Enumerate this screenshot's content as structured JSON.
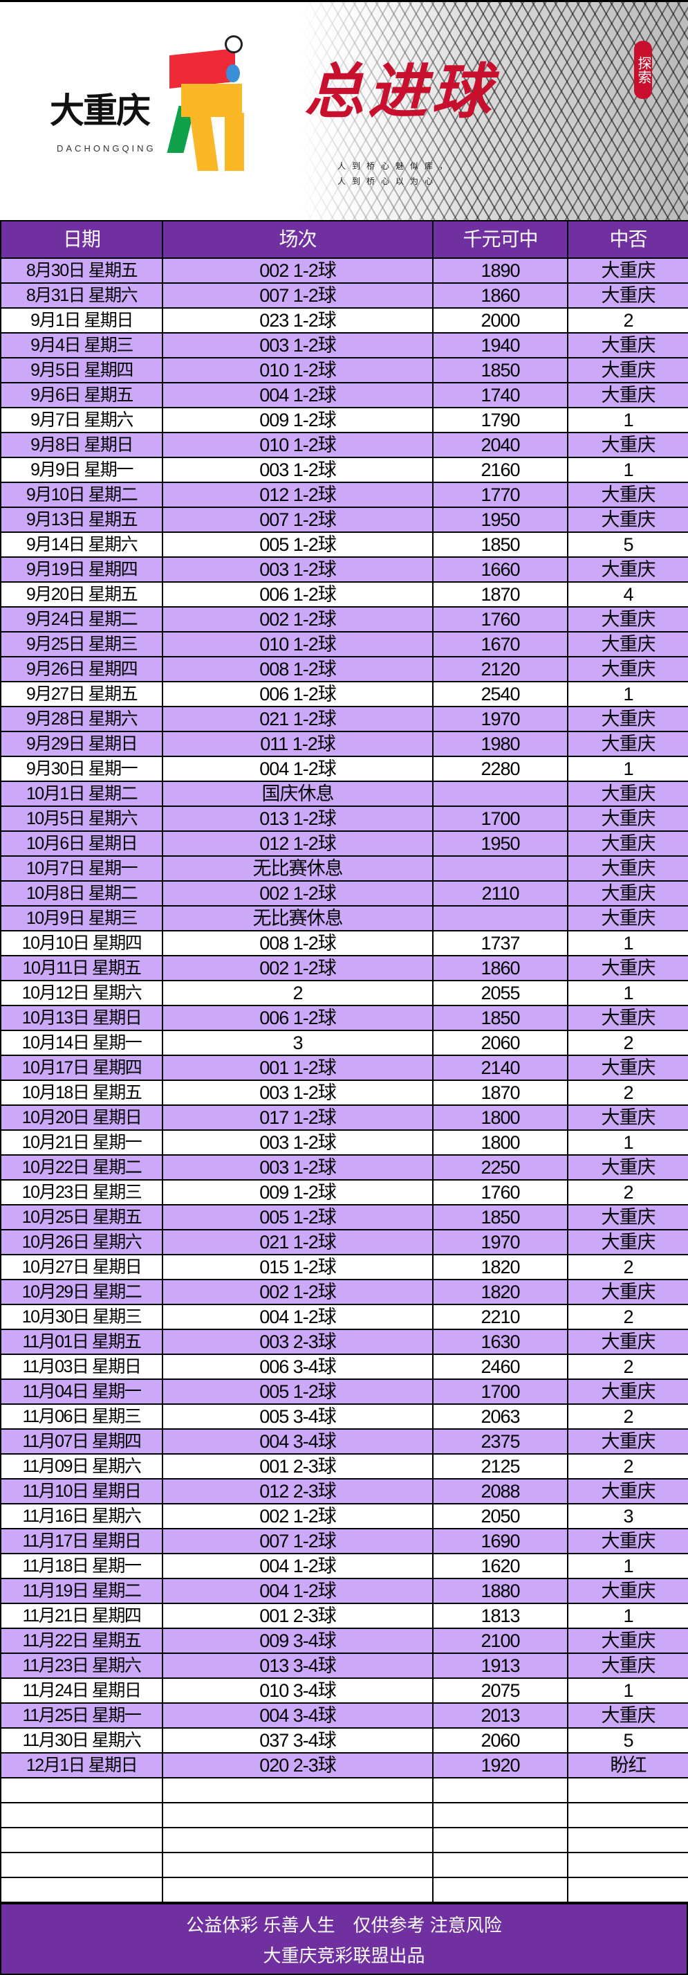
{
  "banner": {
    "brand": "大重庆",
    "brand_sub": "DACHONGQING",
    "title": "总进球",
    "poem": [
      "人到桥心魅似库，",
      "人到桥心以为心"
    ],
    "stamp": "探索"
  },
  "colors": {
    "header_bg": "#7030a0",
    "hit_row_bg": "#cca8f8",
    "title_red": "#c8102e"
  },
  "table": {
    "headers": [
      "日期",
      "场次",
      "千元可中",
      "中否"
    ],
    "rows": [
      {
        "date": "8月30日 星期五",
        "match": "002 1-2球",
        "payout": "1890",
        "result": "大重庆",
        "hit": true
      },
      {
        "date": "8月31日 星期六",
        "match": "007 1-2球",
        "payout": "1860",
        "result": "大重庆",
        "hit": true
      },
      {
        "date": "9月1日 星期日",
        "match": "023 1-2球",
        "payout": "2000",
        "result": "2",
        "hit": false
      },
      {
        "date": "9月4日 星期三",
        "match": "003 1-2球",
        "payout": "1940",
        "result": "大重庆",
        "hit": true
      },
      {
        "date": "9月5日 星期四",
        "match": "010 1-2球",
        "payout": "1850",
        "result": "大重庆",
        "hit": true
      },
      {
        "date": "9月6日 星期五",
        "match": "004 1-2球",
        "payout": "1740",
        "result": "大重庆",
        "hit": true
      },
      {
        "date": "9月7日 星期六",
        "match": "009 1-2球",
        "payout": "1790",
        "result": "1",
        "hit": false
      },
      {
        "date": "9月8日 星期日",
        "match": "010 1-2球",
        "payout": "2040",
        "result": "大重庆",
        "hit": true
      },
      {
        "date": "9月9日 星期一",
        "match": "003 1-2球",
        "payout": "2160",
        "result": "1",
        "hit": false
      },
      {
        "date": "9月10日 星期二",
        "match": "012 1-2球",
        "payout": "1770",
        "result": "大重庆",
        "hit": true
      },
      {
        "date": "9月13日 星期五",
        "match": "007 1-2球",
        "payout": "1950",
        "result": "大重庆",
        "hit": true
      },
      {
        "date": "9月14日 星期六",
        "match": "005 1-2球",
        "payout": "1850",
        "result": "5",
        "hit": false
      },
      {
        "date": "9月19日 星期四",
        "match": "003 1-2球",
        "payout": "1660",
        "result": "大重庆",
        "hit": true
      },
      {
        "date": "9月20日 星期五",
        "match": "006 1-2球",
        "payout": "1870",
        "result": "4",
        "hit": false
      },
      {
        "date": "9月24日 星期二",
        "match": "002 1-2球",
        "payout": "1760",
        "result": "大重庆",
        "hit": true
      },
      {
        "date": "9月25日 星期三",
        "match": "010 1-2球",
        "payout": "1670",
        "result": "大重庆",
        "hit": true
      },
      {
        "date": "9月26日 星期四",
        "match": "008 1-2球",
        "payout": "2120",
        "result": "大重庆",
        "hit": true
      },
      {
        "date": "9月27日 星期五",
        "match": "006 1-2球",
        "payout": "2540",
        "result": "1",
        "hit": false
      },
      {
        "date": "9月28日 星期六",
        "match": "021 1-2球",
        "payout": "1970",
        "result": "大重庆",
        "hit": true
      },
      {
        "date": "9月29日 星期日",
        "match": "011 1-2球",
        "payout": "1980",
        "result": "大重庆",
        "hit": true
      },
      {
        "date": "9月30日 星期一",
        "match": "004 1-2球",
        "payout": "2280",
        "result": "1",
        "hit": false
      },
      {
        "date": "10月1日 星期二",
        "match": "国庆休息",
        "payout": "",
        "result": "大重庆",
        "hit": true
      },
      {
        "date": "10月5日 星期六",
        "match": "013 1-2球",
        "payout": "1700",
        "result": "大重庆",
        "hit": true
      },
      {
        "date": "10月6日 星期日",
        "match": "012 1-2球",
        "payout": "1950",
        "result": "大重庆",
        "hit": true
      },
      {
        "date": "10月7日 星期一",
        "match": "无比赛休息",
        "payout": "",
        "result": "大重庆",
        "hit": true
      },
      {
        "date": "10月8日 星期二",
        "match": "002 1-2球",
        "payout": "2110",
        "result": "大重庆",
        "hit": true
      },
      {
        "date": "10月9日 星期三",
        "match": "无比赛休息",
        "payout": "",
        "result": "大重庆",
        "hit": true
      },
      {
        "date": "10月10日 星期四",
        "match": "008 1-2球",
        "payout": "1737",
        "result": "1",
        "hit": false
      },
      {
        "date": "10月11日 星期五",
        "match": "002 1-2球",
        "payout": "1860",
        "result": "大重庆",
        "hit": true
      },
      {
        "date": "10月12日 星期六",
        "match": "2",
        "payout": "2055",
        "result": "1",
        "hit": false
      },
      {
        "date": "10月13日 星期日",
        "match": "006 1-2球",
        "payout": "1850",
        "result": "大重庆",
        "hit": true
      },
      {
        "date": "10月14日 星期一",
        "match": "3",
        "payout": "2060",
        "result": "2",
        "hit": false
      },
      {
        "date": "10月17日 星期四",
        "match": "001 1-2球",
        "payout": "2140",
        "result": "大重庆",
        "hit": true
      },
      {
        "date": "10月18日 星期五",
        "match": "003 1-2球",
        "payout": "1870",
        "result": "2",
        "hit": false
      },
      {
        "date": "10月20日 星期日",
        "match": "017 1-2球",
        "payout": "1800",
        "result": "大重庆",
        "hit": true
      },
      {
        "date": "10月21日 星期一",
        "match": "003 1-2球",
        "payout": "1800",
        "result": "1",
        "hit": false
      },
      {
        "date": "10月22日 星期二",
        "match": "003 1-2球",
        "payout": "2250",
        "result": "大重庆",
        "hit": true
      },
      {
        "date": "10月23日 星期三",
        "match": "009 1-2球",
        "payout": "1760",
        "result": "2",
        "hit": false
      },
      {
        "date": "10月25日 星期五",
        "match": "005 1-2球",
        "payout": "1850",
        "result": "大重庆",
        "hit": true
      },
      {
        "date": "10月26日 星期六",
        "match": "021 1-2球",
        "payout": "1970",
        "result": "大重庆",
        "hit": true
      },
      {
        "date": "10月27日 星期日",
        "match": "015 1-2球",
        "payout": "1820",
        "result": "2",
        "hit": false
      },
      {
        "date": "10月29日 星期二",
        "match": "002 1-2球",
        "payout": "1820",
        "result": "大重庆",
        "hit": true
      },
      {
        "date": "10月30日 星期三",
        "match": "004 1-2球",
        "payout": "2210",
        "result": "2",
        "hit": false
      },
      {
        "date": "11月01日 星期五",
        "match": "003 2-3球",
        "payout": "1630",
        "result": "大重庆",
        "hit": true
      },
      {
        "date": "11月03日 星期日",
        "match": "006 3-4球",
        "payout": "2460",
        "result": "2",
        "hit": false
      },
      {
        "date": "11月04日 星期一",
        "match": "005 1-2球",
        "payout": "1700",
        "result": "大重庆",
        "hit": true
      },
      {
        "date": "11月06日 星期三",
        "match": "005 3-4球",
        "payout": "2063",
        "result": "2",
        "hit": false
      },
      {
        "date": "11月07日 星期四",
        "match": "004 3-4球",
        "payout": "2375",
        "result": "大重庆",
        "hit": true
      },
      {
        "date": "11月09日 星期六",
        "match": "001 2-3球",
        "payout": "2125",
        "result": "2",
        "hit": false
      },
      {
        "date": "11月10日 星期日",
        "match": "012 2-3球",
        "payout": "2088",
        "result": "大重庆",
        "hit": true
      },
      {
        "date": "11月16日 星期六",
        "match": "002 1-2球",
        "payout": "2050",
        "result": "3",
        "hit": false
      },
      {
        "date": "11月17日 星期日",
        "match": "007 1-2球",
        "payout": "1690",
        "result": "大重庆",
        "hit": true
      },
      {
        "date": "11月18日 星期一",
        "match": "004 1-2球",
        "payout": "1620",
        "result": "1",
        "hit": false
      },
      {
        "date": "11月19日 星期二",
        "match": "004 1-2球",
        "payout": "1880",
        "result": "大重庆",
        "hit": true
      },
      {
        "date": "11月21日 星期四",
        "match": "001 2-3球",
        "payout": "1813",
        "result": "1",
        "hit": false
      },
      {
        "date": "11月22日 星期五",
        "match": "009 3-4球",
        "payout": "2100",
        "result": "大重庆",
        "hit": true
      },
      {
        "date": "11月23日 星期六",
        "match": "013 3-4球",
        "payout": "1913",
        "result": "大重庆",
        "hit": true
      },
      {
        "date": "11月24日 星期日",
        "match": "010 3-4球",
        "payout": "2075",
        "result": "1",
        "hit": false
      },
      {
        "date": "11月25日 星期一",
        "match": "004 3-4球",
        "payout": "2013",
        "result": "大重庆",
        "hit": true
      },
      {
        "date": "11月30日 星期六",
        "match": "037 3-4球",
        "payout": "2060",
        "result": "5",
        "hit": false
      },
      {
        "date": "12月1日 星期日",
        "match": "020 2-3球",
        "payout": "1920",
        "result": "盼红",
        "hit": true
      },
      {
        "date": "",
        "match": "",
        "payout": "",
        "result": "",
        "hit": false
      },
      {
        "date": "",
        "match": "",
        "payout": "",
        "result": "",
        "hit": false
      },
      {
        "date": "",
        "match": "",
        "payout": "",
        "result": "",
        "hit": false
      },
      {
        "date": "",
        "match": "",
        "payout": "",
        "result": "",
        "hit": false
      },
      {
        "date": "",
        "match": "",
        "payout": "",
        "result": "",
        "hit": false
      }
    ]
  },
  "footer": {
    "line1": "公益体彩 乐善人生　仅供参考 注意风险",
    "line2": "大重庆竞彩联盟出品"
  }
}
